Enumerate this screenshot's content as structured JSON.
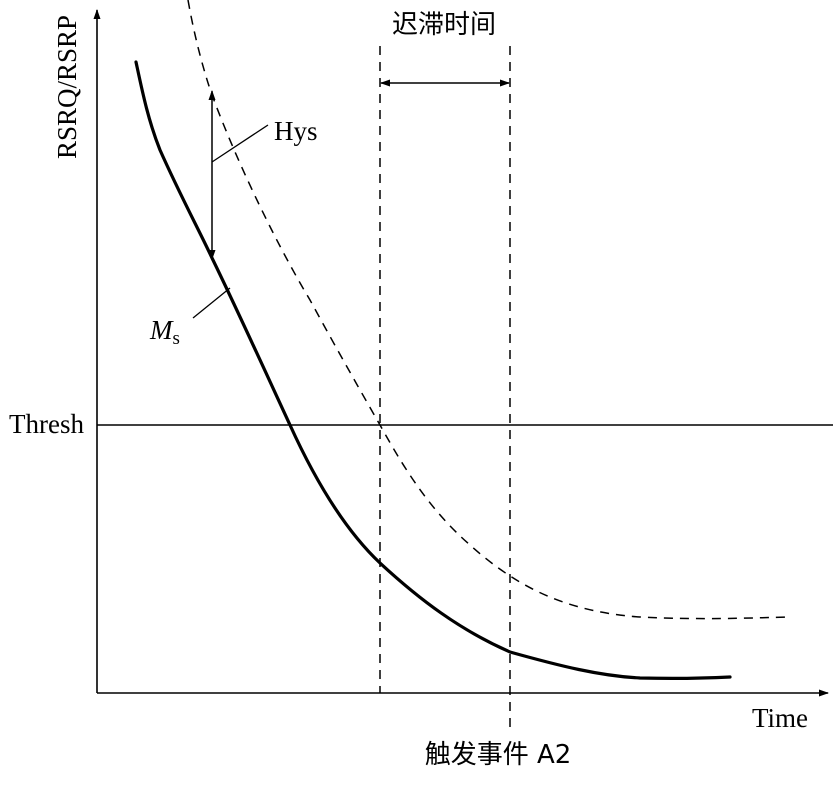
{
  "diagram": {
    "y_axis_label": "RSRQ/RSRP",
    "x_axis_label": "Time",
    "threshold_label": "Thresh",
    "hysteresis_label": "Hys",
    "serving_measurement_label_main": "M",
    "serving_measurement_label_sub": "s",
    "time_to_trigger_label": "迟滞时间",
    "event_label": "触发事件 A2"
  },
  "colors": {
    "line": "#000000",
    "background": "#ffffff"
  }
}
